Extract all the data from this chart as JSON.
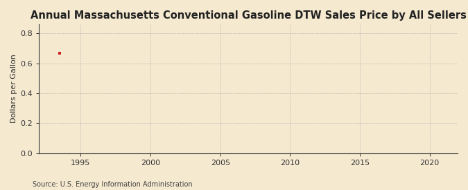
{
  "title": "Annual Massachusetts Conventional Gasoline DTW Sales Price by All Sellers",
  "ylabel": "Dollars per Gallon",
  "source": "Source: U.S. Energy Information Administration",
  "background_color": "#f5e9d0",
  "plot_background_color": "#f5e9d0",
  "data_x": [
    1993.5
  ],
  "data_y": [
    0.67
  ],
  "data_color": "#cc2222",
  "xlim": [
    1992,
    2022
  ],
  "ylim": [
    0.0,
    0.86
  ],
  "yticks": [
    0.0,
    0.2,
    0.4,
    0.6,
    0.8
  ],
  "xticks": [
    1995,
    2000,
    2005,
    2010,
    2015,
    2020
  ],
  "grid_color": "#aaaaaa",
  "axis_color": "#333333",
  "title_fontsize": 10.5,
  "label_fontsize": 8,
  "tick_fontsize": 8,
  "source_fontsize": 7
}
